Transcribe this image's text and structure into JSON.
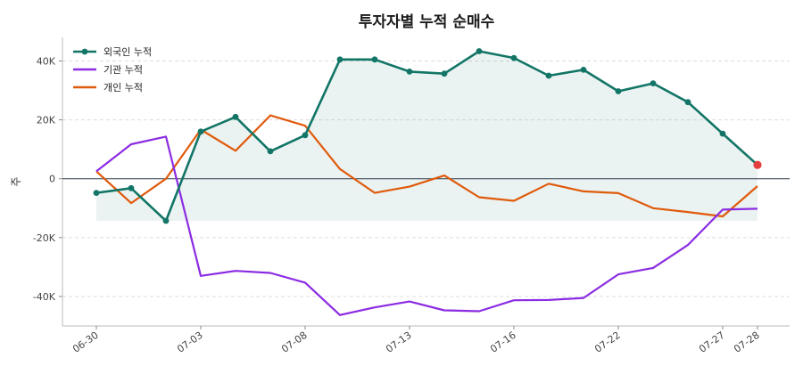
{
  "chart_data": {
    "type": "line",
    "title": "투자자별 누적 순매수",
    "xlabel": "",
    "ylabel": "주",
    "ylim": [
      -50000,
      48000
    ],
    "yticks": [
      -40000,
      -20000,
      0,
      20000,
      40000
    ],
    "ytick_labels": [
      "-40K",
      "-20K",
      "0",
      "20K",
      "40K"
    ],
    "xtick_labels": [
      "06-30",
      "07-03",
      "07-08",
      "07-13",
      "07-16",
      "07-22",
      "07-27",
      "07-28"
    ],
    "xtick_indices": [
      0,
      3,
      6,
      9,
      12,
      15,
      18,
      19
    ],
    "x": [
      0,
      1,
      2,
      3,
      4,
      5,
      6,
      7,
      8,
      9,
      10,
      11,
      12,
      13,
      14,
      15,
      16,
      17,
      18,
      19
    ],
    "series": [
      {
        "name": "외국인 누적",
        "color": "#127566",
        "marker": "circle",
        "values": [
          -4800,
          -3200,
          -14300,
          16000,
          21000,
          9300,
          14800,
          40500,
          40500,
          36400,
          35700,
          43300,
          41000,
          35000,
          37000,
          29700,
          32400,
          26000,
          15300,
          4700
        ]
      },
      {
        "name": "기관 누적",
        "color": "#8b2be2",
        "marker": "none",
        "values": [
          2500,
          11700,
          14300,
          -33000,
          -31300,
          -32000,
          -35300,
          -46300,
          -43700,
          -41700,
          -44700,
          -45000,
          -41300,
          -41200,
          -40500,
          -32500,
          -30300,
          -22500,
          -10500,
          -10200
        ]
      },
      {
        "name": "개인 누적",
        "color": "#e05a0c",
        "marker": "none",
        "values": [
          2500,
          -8300,
          0,
          16700,
          9500,
          21500,
          18000,
          3300,
          -4800,
          -2700,
          1100,
          -6300,
          -7500,
          -1700,
          -4300,
          -4900,
          -10000,
          -11300,
          -12800,
          -2500
        ]
      }
    ],
    "fill_series": "외국인 누적",
    "fill_color": "#127566",
    "end_marker_color": "#e53e3e",
    "zero_line": true,
    "grid": "horizontal-dashed",
    "legend": "top-left"
  }
}
